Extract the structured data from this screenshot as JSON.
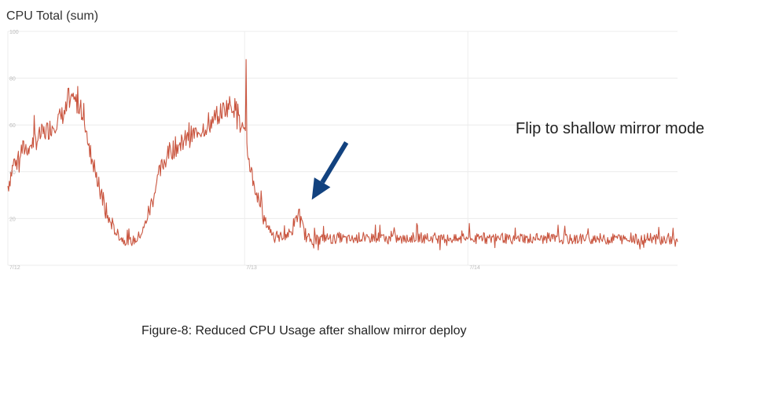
{
  "chart_data": {
    "type": "line",
    "title": "CPU Total (sum)",
    "xlabel": "",
    "ylabel": "",
    "ylim": [
      0,
      100
    ],
    "grid": true,
    "x_ticks": [
      "7/12",
      "7/13",
      "7/14"
    ],
    "y_ticks": [
      "100",
      "80",
      "60",
      "40",
      "20"
    ],
    "colors": {
      "series": "#c9553f",
      "arrow": "#12427f",
      "grid": "#ececec"
    },
    "series": [
      {
        "name": "",
        "x": [
          0,
          1,
          2,
          3,
          4,
          5,
          6,
          7,
          8,
          9,
          10,
          11,
          12,
          13,
          14,
          15,
          16,
          17,
          18,
          19,
          20,
          21,
          22,
          23,
          24,
          25,
          26,
          27,
          28,
          29,
          30,
          31,
          32,
          33,
          34,
          35,
          36,
          37,
          38,
          39,
          40,
          41,
          42,
          43,
          44,
          45,
          46,
          47,
          48,
          49,
          50,
          51,
          52,
          53,
          54,
          55,
          56,
          57,
          58,
          59,
          60,
          61,
          62,
          63,
          64,
          65,
          66,
          67,
          68,
          69,
          70,
          71,
          72,
          73,
          74,
          75,
          76,
          77,
          78,
          79,
          80,
          81,
          82,
          83,
          84,
          85,
          86,
          87,
          88,
          89,
          90,
          91,
          92,
          93,
          94,
          95,
          96,
          97,
          98,
          99
        ],
        "values": [
          34,
          45,
          49,
          51,
          53,
          56,
          58,
          61,
          64,
          68,
          70,
          66,
          52,
          39,
          27,
          19,
          14,
          11,
          10,
          11,
          15,
          24,
          35,
          44,
          49,
          51,
          53,
          55,
          57,
          59,
          61,
          64,
          67,
          69,
          66,
          55,
          40,
          28,
          19,
          14,
          12,
          13,
          14,
          23,
          12,
          11,
          11,
          12,
          11,
          12,
          11,
          11,
          12,
          11,
          12,
          12,
          11,
          12,
          11,
          11,
          12,
          12,
          11,
          12,
          11,
          12,
          11,
          11,
          12,
          11,
          12,
          11,
          12,
          12,
          11,
          11,
          12,
          11,
          12,
          11,
          12,
          11,
          12,
          11,
          11,
          12,
          11,
          12,
          11,
          11,
          12,
          11,
          12,
          11,
          11,
          12,
          11,
          11,
          11,
          10
        ]
      }
    ],
    "annotations": [
      {
        "text": "Flip to shallow mirror mode",
        "points_to_x": 44
      }
    ]
  },
  "caption": "Figure-8: Reduced CPU Usage after shallow mirror deploy"
}
